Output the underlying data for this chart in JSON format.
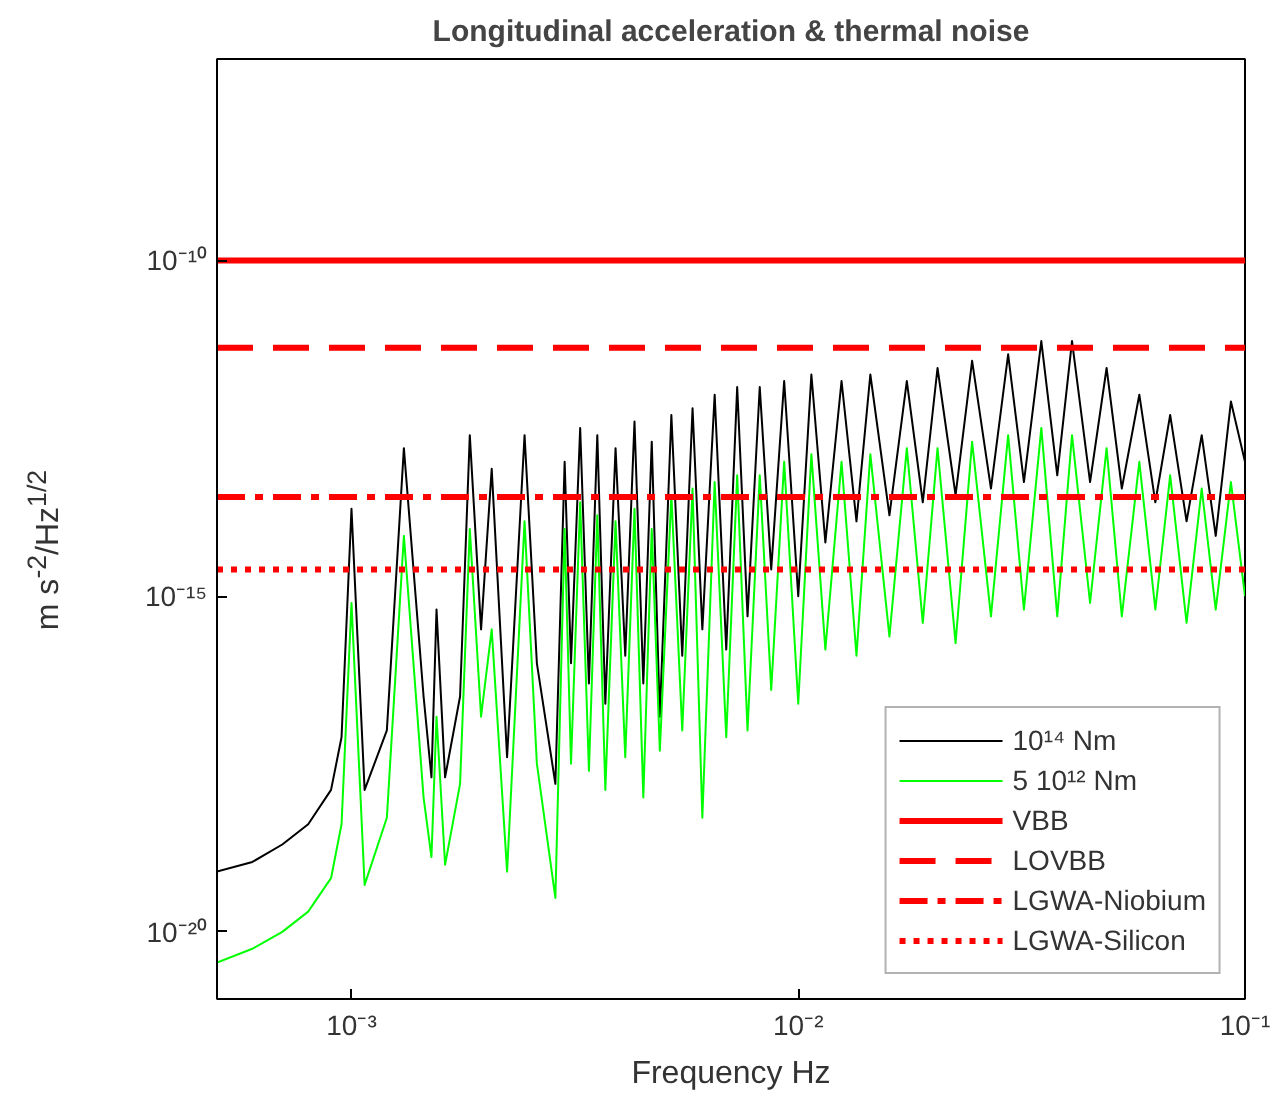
{
  "chart_data": {
    "type": "line",
    "title": "Longitudinal acceleration & thermal noise",
    "xlabel": "Frequency Hz",
    "ylabel": "m s$^{-2}$/Hz$^{1/2}$",
    "log": "xy",
    "grid": false,
    "legend": "bottom right",
    "xlim": [
      0.0005,
      0.1
    ],
    "ylim": [
      1e-21,
      1e-07
    ],
    "xticks": [
      {
        "value": 0.001,
        "label": "10⁻³"
      },
      {
        "value": 0.01,
        "label": "10⁻²"
      },
      {
        "value": 0.1,
        "label": "10⁻¹"
      }
    ],
    "yticks": [
      {
        "value": 1e-20,
        "label": "10⁻²⁰"
      },
      {
        "value": 1e-15,
        "label": "10⁻¹⁵"
      },
      {
        "value": 1e-10,
        "label": "10⁻¹⁰"
      }
    ],
    "x": [
      0.0005,
      0.0006,
      0.0007,
      0.0008,
      0.0009,
      0.00095,
      0.001,
      0.00107,
      0.0012,
      0.00131,
      0.00145,
      0.00151,
      0.00155,
      0.00162,
      0.00175,
      0.00184,
      0.00195,
      0.00206,
      0.00223,
      0.00244,
      0.0026,
      0.00286,
      0.003,
      0.0031,
      0.00325,
      0.0034,
      0.00355,
      0.0037,
      0.0039,
      0.0041,
      0.0043,
      0.0045,
      0.0047,
      0.0049,
      0.0052,
      0.0055,
      0.0058,
      0.0061,
      0.0065,
      0.0069,
      0.0073,
      0.0077,
      0.0082,
      0.0087,
      0.0093,
      0.01,
      0.0107,
      0.0115,
      0.0125,
      0.0135,
      0.0145,
      0.016,
      0.0175,
      0.019,
      0.0205,
      0.0225,
      0.0245,
      0.027,
      0.0295,
      0.032,
      0.035,
      0.038,
      0.041,
      0.045,
      0.049,
      0.053,
      0.058,
      0.063,
      0.068,
      0.074,
      0.08,
      0.086,
      0.093,
      0.1
    ],
    "series": [
      {
        "name": "10¹⁴ Nm",
        "color": "#000000",
        "values": [
          7.9e-20,
          1.1e-19,
          2e-19,
          4e-19,
          1.3e-18,
          7.9e-18,
          2e-14,
          1.3e-18,
          1e-17,
          1.6e-13,
          3.2e-17,
          2e-18,
          6.3e-16,
          2e-18,
          3.2e-17,
          2.5e-13,
          3.2e-16,
          7.9e-14,
          4e-18,
          2.5e-13,
          1e-16,
          1.6e-18,
          1e-13,
          1e-16,
          3.2e-13,
          5e-17,
          2.5e-13,
          2.5e-17,
          1.6e-13,
          1.3e-16,
          4e-13,
          5e-17,
          2e-13,
          1.6e-17,
          5e-13,
          1.3e-16,
          6.3e-13,
          3.2e-16,
          1e-12,
          1.6e-16,
          1.3e-12,
          5e-16,
          1.3e-12,
          2.5e-15,
          1.6e-12,
          1e-15,
          2e-12,
          6.3e-15,
          1.6e-12,
          1.3e-14,
          2e-12,
          1.6e-14,
          1.6e-12,
          2.5e-14,
          2.5e-12,
          3.2e-14,
          3.2e-12,
          4e-14,
          4e-12,
          5e-14,
          6.3e-12,
          6.3e-14,
          6.3e-12,
          5e-14,
          2.5e-12,
          4e-14,
          1e-12,
          2.5e-14,
          5e-13,
          1.3e-14,
          2.5e-13,
          7.9e-15,
          7.9e-13,
          1e-13
        ]
      },
      {
        "name": "5 10¹² Nm",
        "color": "#00ff00",
        "values": [
          3.5e-21,
          5.6e-21,
          1e-20,
          2e-20,
          6.3e-20,
          4e-19,
          7.9e-16,
          5e-20,
          5e-19,
          7.9e-15,
          1e-18,
          1.3e-19,
          1.6e-17,
          1e-19,
          1.6e-18,
          1e-14,
          1.6e-17,
          3.2e-16,
          7.9e-20,
          1.3e-14,
          3.2e-18,
          3.2e-20,
          1e-14,
          3.2e-18,
          2.5e-14,
          2.5e-18,
          1.6e-14,
          1.3e-18,
          1.3e-14,
          4e-18,
          2e-14,
          1e-18,
          1e-14,
          5e-18,
          3.2e-14,
          1e-17,
          4e-14,
          5e-19,
          5e-14,
          7.9e-18,
          6.3e-14,
          1e-17,
          6.3e-14,
          4e-17,
          1e-13,
          2.5e-17,
          1.3e-13,
          1.6e-16,
          1e-13,
          1.3e-16,
          1.3e-13,
          2.5e-16,
          1.6e-13,
          4e-16,
          1.6e-13,
          2e-16,
          2e-13,
          5e-16,
          2.5e-13,
          6.3e-16,
          3.2e-13,
          5e-16,
          2.5e-13,
          7.9e-16,
          1.6e-13,
          5e-16,
          1e-13,
          6.3e-16,
          6.3e-14,
          4e-16,
          4e-14,
          6.3e-16,
          5e-14,
          1e-15
        ]
      }
    ],
    "ref_lines": [
      {
        "axis": "y",
        "value": 1e-10,
        "label": "VBB",
        "color": "#ff0000",
        "line_style": "solid"
      },
      {
        "axis": "y",
        "value": 5e-12,
        "label": "LOVBB",
        "color": "#ff0000",
        "line_style": "dashed"
      },
      {
        "axis": "y",
        "value": 3e-14,
        "label": "LGWA-Niobium",
        "color": "#ff0000",
        "line_style": "dashdot"
      },
      {
        "axis": "y",
        "value": 2.5e-15,
        "label": "LGWA-Silicon",
        "color": "#ff0000",
        "line_style": "dotted"
      }
    ]
  }
}
